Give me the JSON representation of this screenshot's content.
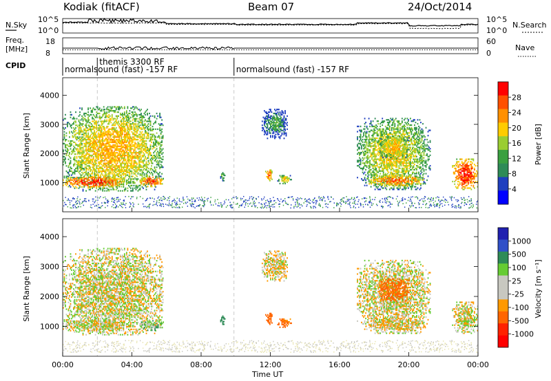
{
  "header": {
    "station": "Kodiak (fitACF)",
    "beam": "Beam 07",
    "date": "24/Oct/2014"
  },
  "strip": {
    "nsky_label": "N.Sky",
    "nsky_ticks": [
      "10^5",
      "10^0"
    ],
    "nsearch_label": "N.Search",
    "nsearch_ticks": [
      "10^5",
      "10^0"
    ],
    "freq_label_1": "Freq.",
    "freq_label_2": "[MHz]",
    "freq_ticks": [
      "18",
      "8"
    ],
    "nave_label": "Nave",
    "nave_ticks": [
      "60",
      "0"
    ],
    "cpid_label": "CPID",
    "cpid_segments": [
      {
        "text": "normalsound (fast) -157 RF",
        "start": 0.0
      },
      {
        "text": "themis 3300 RF",
        "start": 2.0
      },
      {
        "text": "normalsound (fast) -157 RF",
        "start": 9.9
      }
    ]
  },
  "axes": {
    "ylabel": "Slant Range [km]",
    "xlabel": "Time UT",
    "xticks": [
      "00:00",
      "04:00",
      "08:00",
      "12:00",
      "16:00",
      "20:00",
      "00:00"
    ],
    "yticks": [
      "1000",
      "2000",
      "3000",
      "4000"
    ]
  },
  "power_bar": {
    "label": "Power [dB]",
    "ticks": [
      "28",
      "24",
      "20",
      "16",
      "12",
      "8",
      "4"
    ],
    "colors": [
      "#ff0000",
      "#ff5000",
      "#ff9000",
      "#ffcc00",
      "#9acd32",
      "#3aa040",
      "#2e8b57",
      "#1e3fbf",
      "#0000ff"
    ]
  },
  "velocity_bar": {
    "label": "Velocity [m s⁻¹]",
    "ticks": [
      "1000",
      "500",
      "100",
      "25",
      "-25",
      "-100",
      "-500",
      "-1000"
    ],
    "colors": [
      "#2020b0",
      "#3050c8",
      "#2e8b57",
      "#66cc33",
      "#c8c8c0",
      "#c8c8c0",
      "#ff9900",
      "#ff6600",
      "#ff2200",
      "#ff0000"
    ]
  },
  "chart_data": {
    "type": "heatmap",
    "x_unit": "hours UT",
    "x_range": [
      0,
      24
    ],
    "y_unit": "km",
    "y_range": [
      0,
      4600
    ],
    "power_range_db": [
      0,
      30
    ],
    "velocity_range": [
      -1000,
      1000
    ],
    "echo_regions": [
      {
        "t0": 0.0,
        "t1": 5.8,
        "r0": 700,
        "r1": 3600,
        "power": 20,
        "velocity": 0
      },
      {
        "t0": 0.0,
        "t1": 3.5,
        "r0": 800,
        "r1": 1200,
        "power": 28,
        "velocity": 0
      },
      {
        "t0": 4.4,
        "t1": 5.8,
        "r0": 850,
        "r1": 1200,
        "power": 26,
        "velocity": 50
      },
      {
        "t0": 9.1,
        "t1": 9.4,
        "r0": 1050,
        "r1": 1350,
        "power": 14,
        "velocity": 200
      },
      {
        "t0": 11.5,
        "t1": 13.0,
        "r0": 2500,
        "r1": 3500,
        "power": 10,
        "velocity": -20
      },
      {
        "t0": 11.7,
        "t1": 12.1,
        "r0": 1050,
        "r1": 1450,
        "power": 26,
        "velocity": -200
      },
      {
        "t0": 12.4,
        "t1": 13.2,
        "r0": 950,
        "r1": 1250,
        "power": 18,
        "velocity": -150
      },
      {
        "t0": 17.0,
        "t1": 21.2,
        "r0": 750,
        "r1": 3200,
        "power": 18,
        "velocity": 0
      },
      {
        "t0": 17.5,
        "t1": 21.0,
        "r0": 850,
        "r1": 1250,
        "power": 24,
        "velocity": -20
      },
      {
        "t0": 18.3,
        "t1": 20.0,
        "r0": 1800,
        "r1": 2600,
        "power": 20,
        "velocity": -150
      },
      {
        "t0": 22.5,
        "t1": 24.0,
        "r0": 750,
        "r1": 1800,
        "power": 28,
        "velocity": 0
      }
    ]
  }
}
